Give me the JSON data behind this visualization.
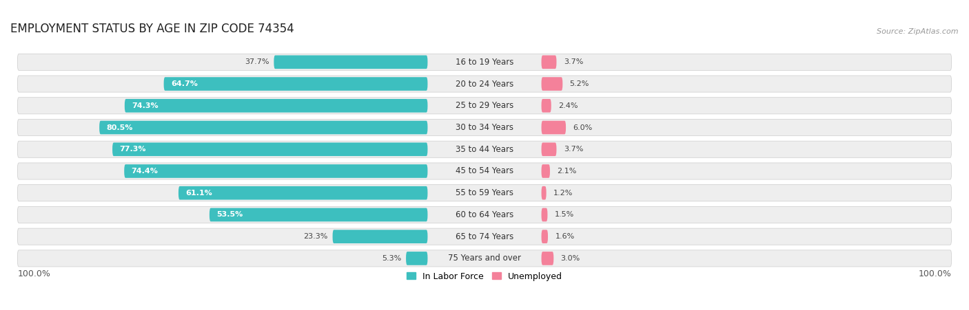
{
  "title": "EMPLOYMENT STATUS BY AGE IN ZIP CODE 74354",
  "source": "Source: ZipAtlas.com",
  "categories": [
    "16 to 19 Years",
    "20 to 24 Years",
    "25 to 29 Years",
    "30 to 34 Years",
    "35 to 44 Years",
    "45 to 54 Years",
    "55 to 59 Years",
    "60 to 64 Years",
    "65 to 74 Years",
    "75 Years and over"
  ],
  "in_labor_force": [
    37.7,
    64.7,
    74.3,
    80.5,
    77.3,
    74.4,
    61.1,
    53.5,
    23.3,
    5.3
  ],
  "unemployed": [
    3.7,
    5.2,
    2.4,
    6.0,
    3.7,
    2.1,
    1.2,
    1.5,
    1.6,
    3.0
  ],
  "labor_color": "#3dbfbf",
  "unemployed_color": "#f4819a",
  "row_bg_color": "#eeeeee",
  "title_fontsize": 12,
  "label_fontsize": 8.5,
  "tick_fontsize": 9,
  "legend_fontsize": 9,
  "x_left_label": "100.0%",
  "x_right_label": "100.0%"
}
